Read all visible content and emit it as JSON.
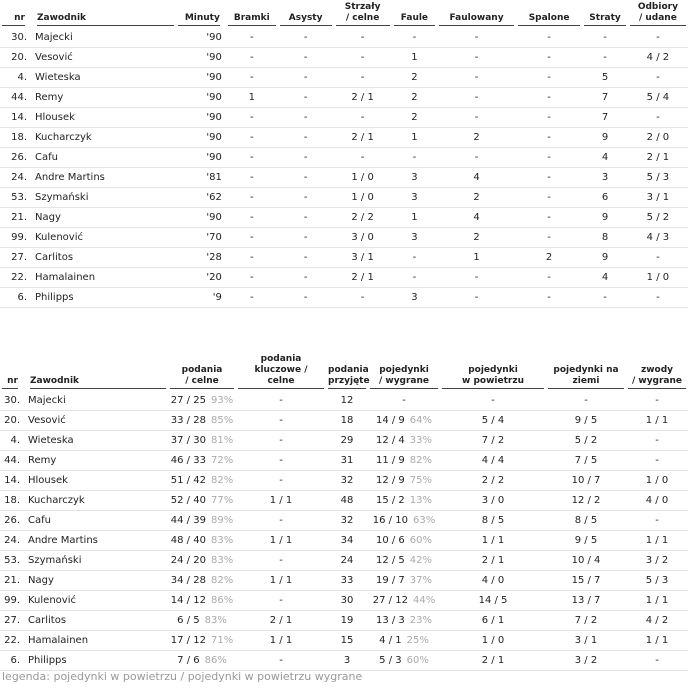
{
  "table1": {
    "headers": [
      [
        "nr"
      ],
      [
        "Zawodnik"
      ],
      [
        "Minuty"
      ],
      [
        "Bramki"
      ],
      [
        "Asysty"
      ],
      [
        "Strzały",
        "/ celne"
      ],
      [
        "Faule"
      ],
      [
        "Faulowany"
      ],
      [
        "Spalone"
      ],
      [
        "Straty"
      ],
      [
        "Odbiory",
        "/ udane"
      ]
    ],
    "rows": [
      [
        "30.",
        "Majecki",
        "'90",
        "-",
        "-",
        "-",
        "-",
        "-",
        "-",
        "-",
        "-"
      ],
      [
        "20.",
        "Vesović",
        "'90",
        "-",
        "-",
        "-",
        "1",
        "-",
        "-",
        "-",
        "4 / 2"
      ],
      [
        "4.",
        "Wieteska",
        "'90",
        "-",
        "-",
        "-",
        "2",
        "-",
        "-",
        "5",
        "-"
      ],
      [
        "44.",
        "Remy",
        "'90",
        "1",
        "-",
        "2 / 1",
        "2",
        "-",
        "-",
        "7",
        "5 / 4"
      ],
      [
        "14.",
        "Hlousek",
        "'90",
        "-",
        "-",
        "-",
        "2",
        "-",
        "-",
        "7",
        "-"
      ],
      [
        "18.",
        "Kucharczyk",
        "'90",
        "-",
        "-",
        "2 / 1",
        "1",
        "2",
        "-",
        "9",
        "2 / 0"
      ],
      [
        "26.",
        "Cafu",
        "'90",
        "-",
        "-",
        "-",
        "-",
        "-",
        "-",
        "4",
        "2 / 1"
      ],
      [
        "24.",
        "Andre Martins",
        "'81",
        "-",
        "-",
        "1 / 0",
        "3",
        "4",
        "-",
        "3",
        "5 / 3"
      ],
      [
        "53.",
        "Szymański",
        "'62",
        "-",
        "-",
        "1 / 0",
        "3",
        "2",
        "-",
        "6",
        "3 / 1"
      ],
      [
        "21.",
        "Nagy",
        "'90",
        "-",
        "-",
        "2 / 2",
        "1",
        "4",
        "-",
        "9",
        "5 / 2"
      ],
      [
        "99.",
        "Kulenović",
        "'70",
        "-",
        "-",
        "3 / 0",
        "3",
        "2",
        "-",
        "8",
        "4 / 3"
      ],
      [
        "27.",
        "Carlitos",
        "'28",
        "-",
        "-",
        "3 / 1",
        "-",
        "1",
        "2",
        "9",
        "-"
      ],
      [
        "22.",
        "Hamalainen",
        "'20",
        "-",
        "-",
        "2 / 1",
        "-",
        "-",
        "-",
        "4",
        "1 / 0"
      ],
      [
        "6.",
        "Philipps",
        "'9",
        "-",
        "-",
        "-",
        "3",
        "-",
        "-",
        "-",
        "-"
      ]
    ]
  },
  "table2": {
    "headers": [
      [
        "nr"
      ],
      [
        "Zawodnik"
      ],
      [
        "podania",
        "/ celne"
      ],
      [
        "podania kluczowe /",
        "celne"
      ],
      [
        "podania",
        "przyjęte"
      ],
      [
        "pojedynki",
        "/ wygrane"
      ],
      [
        "pojedynki",
        "w powietrzu"
      ],
      [
        "pojedynki na",
        "ziemi"
      ],
      [
        "zwody",
        "/ wygrane"
      ]
    ],
    "rows": [
      [
        "30.",
        "Majecki",
        "27 / 25",
        "93%",
        "-",
        "12",
        "-",
        null,
        "-",
        "-",
        "-"
      ],
      [
        "20.",
        "Vesović",
        "33 / 28",
        "85%",
        "-",
        "18",
        "14 / 9",
        "64%",
        "5 / 4",
        "9 / 5",
        "1 / 1"
      ],
      [
        "4.",
        "Wieteska",
        "37 / 30",
        "81%",
        "-",
        "29",
        "12 / 4",
        "33%",
        "7 / 2",
        "5 / 2",
        "-"
      ],
      [
        "44.",
        "Remy",
        "46 / 33",
        "72%",
        "-",
        "31",
        "11 / 9",
        "82%",
        "4 / 4",
        "7 / 5",
        "-"
      ],
      [
        "14.",
        "Hlousek",
        "51 / 42",
        "82%",
        "-",
        "32",
        "12 / 9",
        "75%",
        "2 / 2",
        "10 / 7",
        "1 / 0"
      ],
      [
        "18.",
        "Kucharczyk",
        "52 / 40",
        "77%",
        "1 / 1",
        "48",
        "15 / 2",
        "13%",
        "3 / 0",
        "12 / 2",
        "4 / 0"
      ],
      [
        "26.",
        "Cafu",
        "44 / 39",
        "89%",
        "-",
        "32",
        "16 / 10",
        "63%",
        "8 / 5",
        "8 / 5",
        "-"
      ],
      [
        "24.",
        "Andre Martins",
        "48 / 40",
        "83%",
        "1 / 1",
        "34",
        "10 / 6",
        "60%",
        "1 / 1",
        "9 / 5",
        "1 / 1"
      ],
      [
        "53.",
        "Szymański",
        "24 / 20",
        "83%",
        "-",
        "24",
        "12 / 5",
        "42%",
        "2 / 1",
        "10 / 4",
        "3 / 2"
      ],
      [
        "21.",
        "Nagy",
        "34 / 28",
        "82%",
        "1 / 1",
        "33",
        "19 / 7",
        "37%",
        "4 / 0",
        "15 / 7",
        "5 / 3"
      ],
      [
        "99.",
        "Kulenović",
        "14 / 12",
        "86%",
        "-",
        "30",
        "27 / 12",
        "44%",
        "14 / 5",
        "13 / 7",
        "1 / 1"
      ],
      [
        "27.",
        "Carlitos",
        "6 / 5",
        "83%",
        "2 / 1",
        "19",
        "13 / 3",
        "23%",
        "6 / 1",
        "7 / 2",
        "4 / 2"
      ],
      [
        "22.",
        "Hamalainen",
        "17 / 12",
        "71%",
        "1 / 1",
        "15",
        "4 / 1",
        "25%",
        "1 / 0",
        "3 / 1",
        "1 / 1"
      ],
      [
        "6.",
        "Philipps",
        "7 / 6",
        "86%",
        "-",
        "3",
        "5 / 3",
        "60%",
        "2 / 1",
        "3 / 2",
        "-"
      ]
    ]
  },
  "legend": "legenda: pojedynki w powietrzu / pojedynki w powietrzu wygrane"
}
